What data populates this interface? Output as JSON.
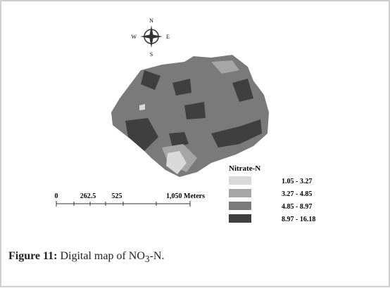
{
  "compass": {
    "north": "N",
    "east": "E",
    "south": "S",
    "west": "W"
  },
  "legend": {
    "title": "Nitrate-N",
    "entries": [
      "1.05 - 3.27",
      "3.27 - 4.85",
      "4.85 - 8.97",
      "8.97 - 16.18"
    ]
  },
  "scale_bar": {
    "labels": [
      "0",
      "262.5",
      "525",
      "1,050 Meters"
    ]
  },
  "caption": {
    "label": "Figure 11:",
    "text": "Digital map of NO",
    "subscript": "3",
    "suffix": "-N."
  }
}
